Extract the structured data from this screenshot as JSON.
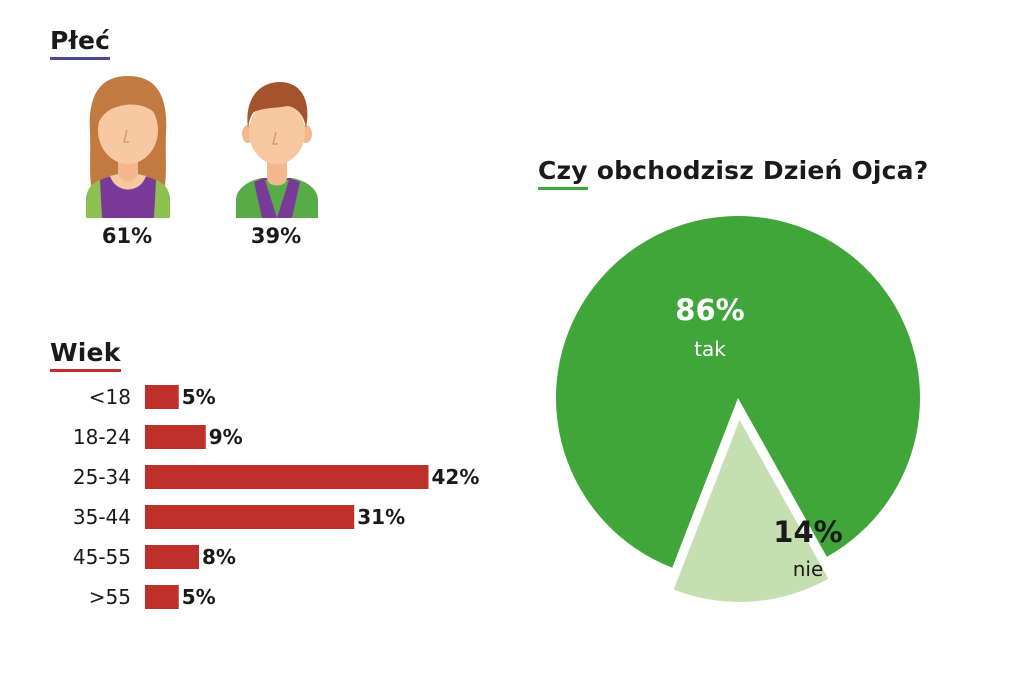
{
  "gender": {
    "title": "Płeć",
    "female": {
      "icon": "woman-avatar-icon",
      "value": "61%"
    },
    "male": {
      "icon": "man-avatar-icon",
      "value": "39%"
    }
  },
  "age": {
    "title": "Wiek"
  },
  "pie": {
    "title_underlined": "Czy",
    "title_rest": " obchodzisz Dzień Ojca?"
  },
  "colors": {
    "bar": "#c0302a",
    "pie_main": "#40a63a",
    "pie_secondary": "#c4e0b0",
    "skin": "#f8c9a0",
    "hair_female": "#c27a40",
    "hair_male": "#a4532d",
    "purple": "#7a3a9a",
    "green_shirt": "#58ac48"
  },
  "chart_data": [
    {
      "type": "bar",
      "orientation": "horizontal",
      "title": "Wiek",
      "categories": [
        "<18",
        "18-24",
        "25-34",
        "35-44",
        "45-55",
        ">55"
      ],
      "values": [
        5,
        9,
        42,
        31,
        8,
        5
      ],
      "labels": [
        "5%",
        "9%",
        "42%",
        "31%",
        "8%",
        "5%"
      ],
      "unit": "%",
      "grid": false
    },
    {
      "type": "pie",
      "title": "Czy obchodzisz Dzień Ojca?",
      "slices": [
        {
          "label": "tak",
          "value": 86,
          "value_label": "86%"
        },
        {
          "label": "nie",
          "value": 14,
          "value_label": "14%"
        }
      ],
      "exploded": "nie"
    }
  ]
}
